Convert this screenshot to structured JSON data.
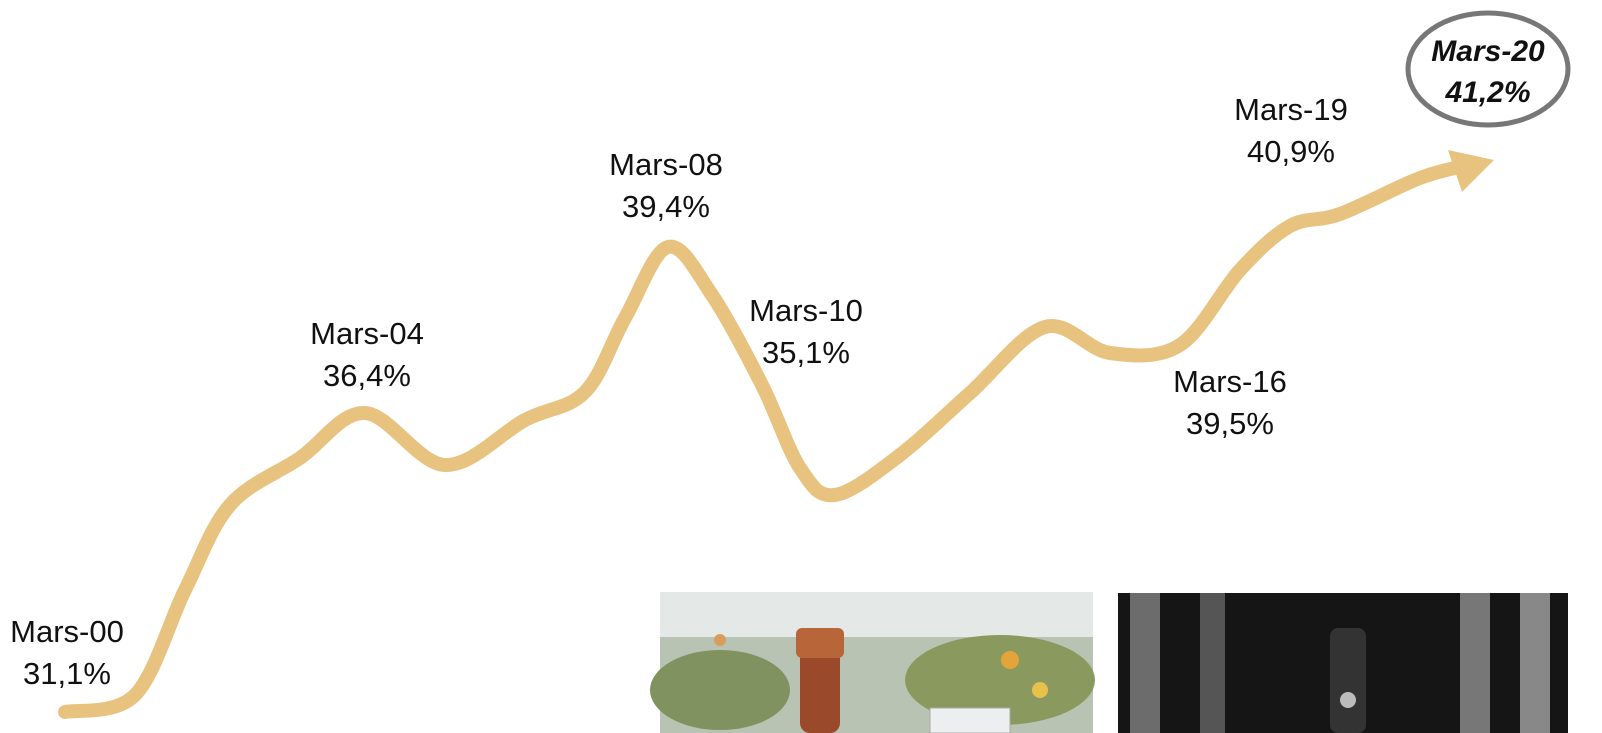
{
  "milestones": [
    {
      "period": "Mars-00",
      "share": "31,1%"
    },
    {
      "period": "Mars-04",
      "share": "36,4%"
    },
    {
      "period": "Mars-08",
      "share": "39,4%"
    },
    {
      "period": "Mars-10",
      "share": "35,1%"
    },
    {
      "period": "Mars-16",
      "share": "39,5%"
    },
    {
      "period": "Mars-19",
      "share": "40,9%"
    }
  ],
  "highlight": {
    "period": "Mars-20",
    "share": "41,2%"
  }
}
